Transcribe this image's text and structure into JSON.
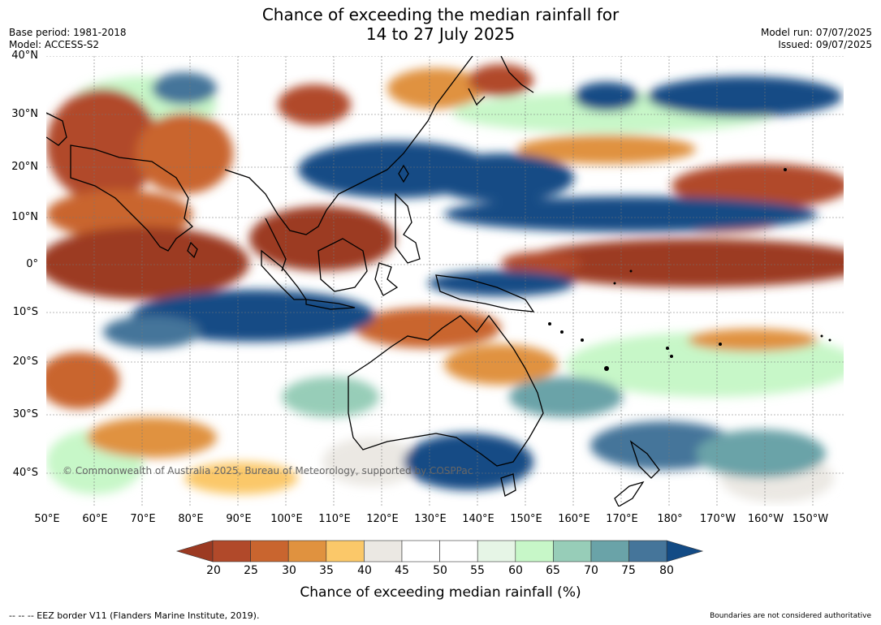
{
  "title": {
    "line1": "Chance of exceeding the median rainfall for",
    "line2": "14 to 27 July 2025"
  },
  "meta": {
    "base_period": "Base period: 1981-2018",
    "model": "Model: ACCESS-S2",
    "model_run": "Model run: 07/07/2025",
    "issued": "Issued: 09/07/2025"
  },
  "map": {
    "copyright": "© Commonwealth of Australia 2025, Bureau of Meteorology, supported by COSPPac",
    "lat_labels": [
      "40°N",
      "30°N",
      "20°N",
      "10°N",
      "0°",
      "10°S",
      "20°S",
      "30°S",
      "40°S"
    ],
    "lon_labels": [
      "50°E",
      "60°E",
      "70°E",
      "80°E",
      "90°E",
      "100°E",
      "110°E",
      "120°E",
      "130°E",
      "140°E",
      "150°E",
      "160°E",
      "170°E",
      "180°",
      "170°W",
      "160°W",
      "150°W"
    ]
  },
  "legend": {
    "ticks": [
      "20",
      "25",
      "30",
      "35",
      "40",
      "45",
      "50",
      "55",
      "60",
      "65",
      "70",
      "75",
      "80"
    ],
    "title": "Chance of exceeding median rainfall (%)",
    "colors": [
      "#9c3a22",
      "#b1492a",
      "#c9652f",
      "#e0923f",
      "#fbc869",
      "#ebe8e3",
      "#ffffff",
      "#ffffff",
      "#e6f5e6",
      "#c7f7c8",
      "#97cdb8",
      "#6aa3a8",
      "#45759a",
      "#134b85"
    ]
  },
  "footer": {
    "eez": "--  --  -- EEZ border V11 (Flanders Marine Institute, 2019).",
    "disclaimer": "Boundaries are not considered authoritative"
  }
}
